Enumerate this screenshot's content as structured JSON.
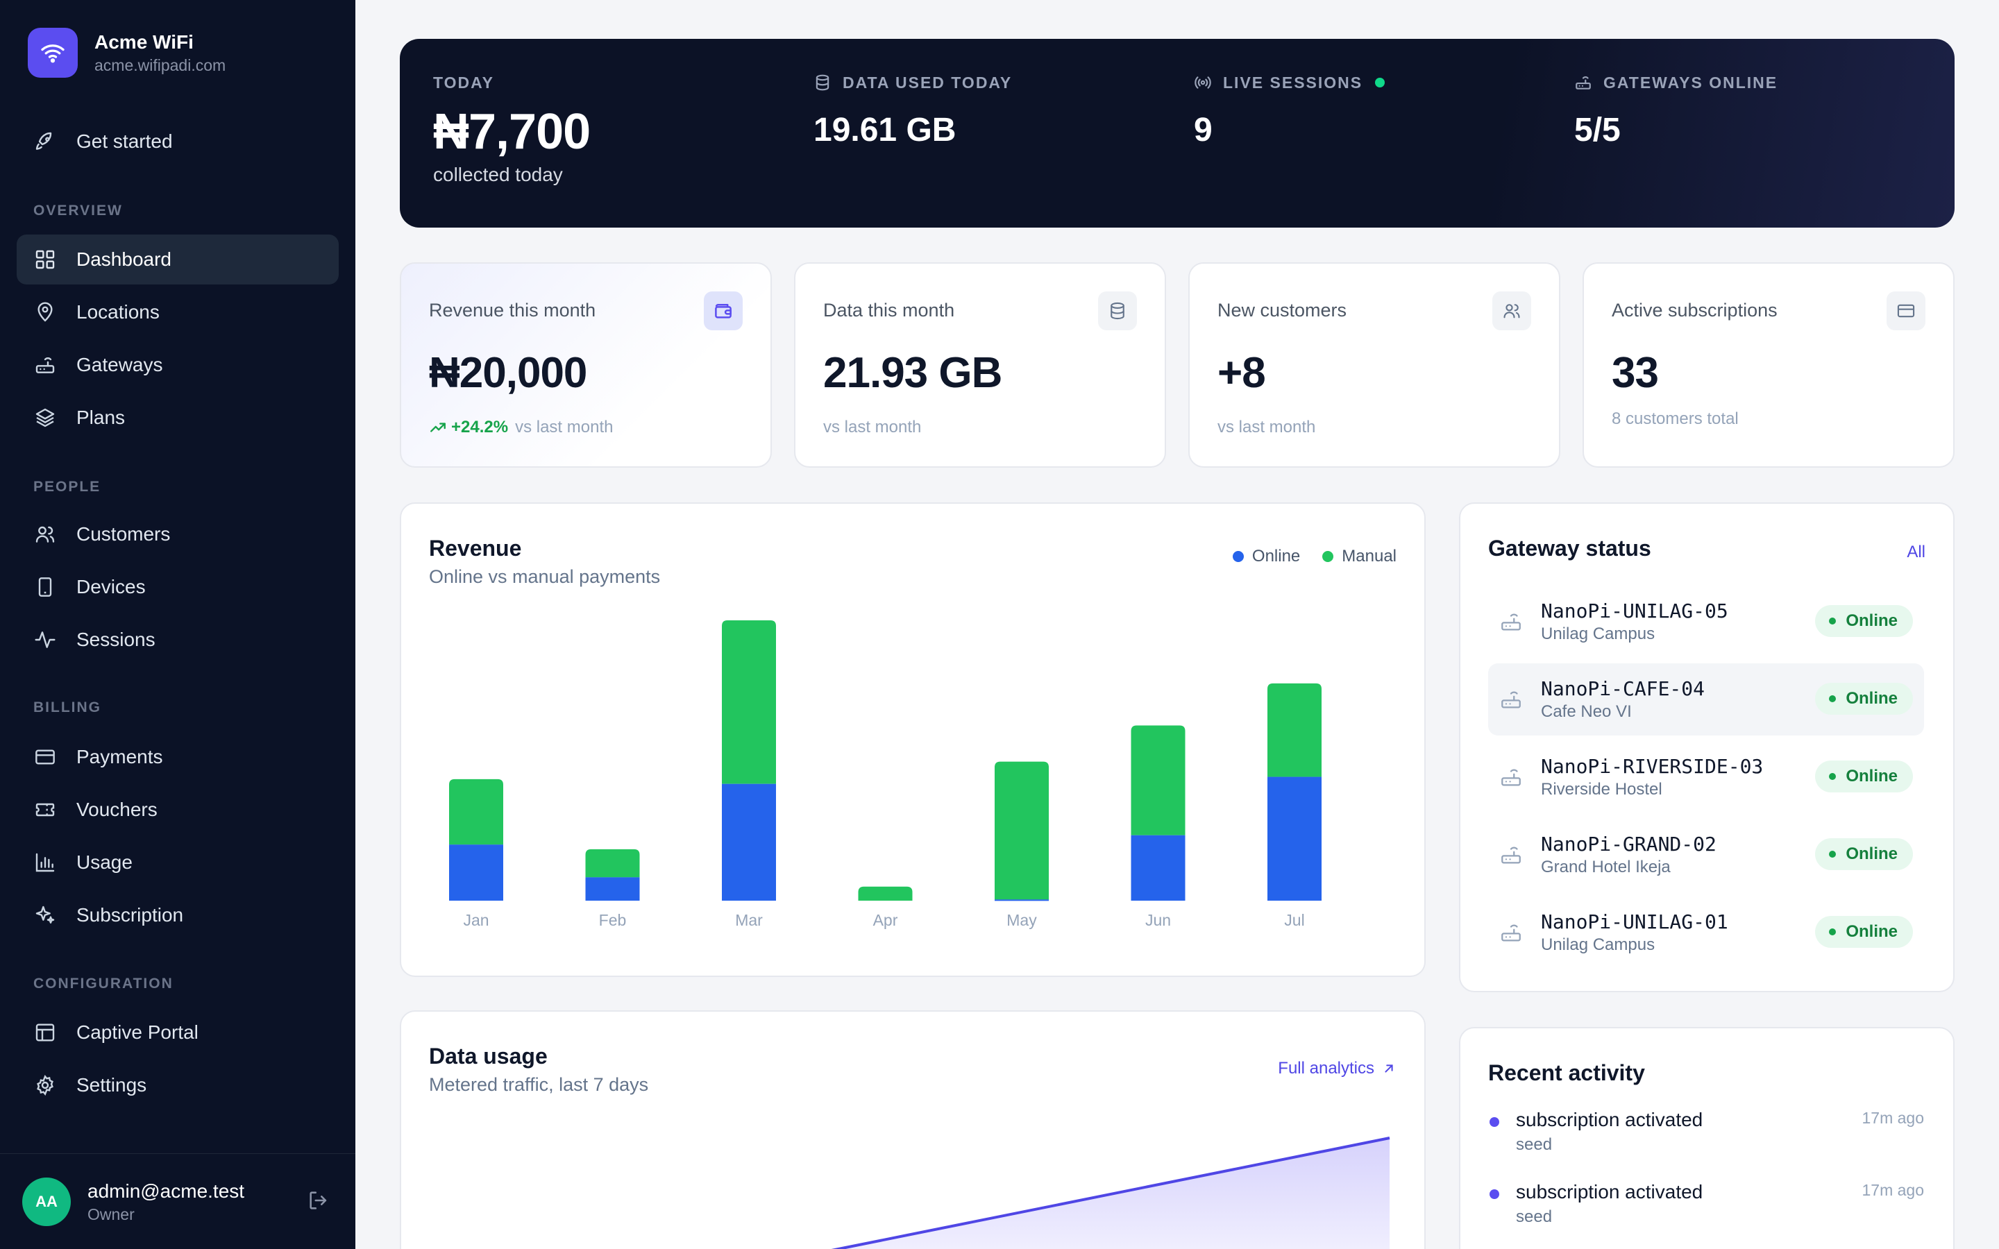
{
  "brand": {
    "name": "Acme WiFi",
    "domain": "acme.wifipadi.com"
  },
  "nav": {
    "get_started": "Get started",
    "sections": {
      "overview": "OVERVIEW",
      "people": "PEOPLE",
      "billing": "BILLING",
      "configuration": "CONFIGURATION"
    },
    "items": {
      "dashboard": "Dashboard",
      "locations": "Locations",
      "gateways": "Gateways",
      "plans": "Plans",
      "customers": "Customers",
      "devices": "Devices",
      "sessions": "Sessions",
      "payments": "Payments",
      "vouchers": "Vouchers",
      "usage": "Usage",
      "subscription": "Subscription",
      "captive_portal": "Captive Portal",
      "settings": "Settings"
    },
    "active": "dashboard"
  },
  "user": {
    "initials": "AA",
    "email": "admin@acme.test",
    "role": "Owner"
  },
  "hero": {
    "today_label": "TODAY",
    "today_value": "₦7,700",
    "today_sub": "collected today",
    "data_label": "DATA USED TODAY",
    "data_value": "19.61 GB",
    "sessions_label": "LIVE SESSIONS",
    "sessions_value": "9",
    "gateways_label": "GATEWAYS ONLINE",
    "gateways_value": "5/5"
  },
  "stats": [
    {
      "label": "Revenue this month",
      "value": "₦20,000",
      "trend": "+24.2%",
      "foot": "vs last month",
      "icon": "wallet-icon"
    },
    {
      "label": "Data this month",
      "value": "21.93 GB",
      "foot": "vs last month",
      "icon": "database-icon"
    },
    {
      "label": "New customers",
      "value": "+8",
      "foot": "vs last month",
      "icon": "users-icon"
    },
    {
      "label": "Active subscriptions",
      "value": "33",
      "foot": "8 customers total",
      "icon": "card-icon"
    }
  ],
  "revenue_panel": {
    "title": "Revenue",
    "subtitle": "Online vs manual payments",
    "legend_online": "Online",
    "legend_manual": "Manual"
  },
  "chart_data": {
    "type": "bar",
    "stacked": true,
    "categories": [
      "Jan",
      "Feb",
      "Mar",
      "Apr",
      "May",
      "Jun",
      "Jul"
    ],
    "series": [
      {
        "name": "Online",
        "color": "#2563eb",
        "values": [
          2400,
          1000,
          5000,
          0,
          50,
          2800,
          5300
        ]
      },
      {
        "name": "Manual",
        "color": "#22c55e",
        "values": [
          2800,
          1200,
          7000,
          600,
          5900,
          4700,
          4000
        ]
      }
    ],
    "grid": false
  },
  "gateway_panel": {
    "title": "Gateway status",
    "link": "All",
    "items": [
      {
        "name": "NanoPi-UNILAG-05",
        "location": "Unilag Campus",
        "status": "Online"
      },
      {
        "name": "NanoPi-CAFE-04",
        "location": "Cafe Neo VI",
        "status": "Online"
      },
      {
        "name": "NanoPi-RIVERSIDE-03",
        "location": "Riverside Hostel",
        "status": "Online"
      },
      {
        "name": "NanoPi-GRAND-02",
        "location": "Grand Hotel Ikeja",
        "status": "Online"
      },
      {
        "name": "NanoPi-UNILAG-01",
        "location": "Unilag Campus",
        "status": "Online"
      }
    ]
  },
  "usage_panel": {
    "title": "Data usage",
    "subtitle": "Metered traffic, last 7 days",
    "link": "Full analytics"
  },
  "activity_panel": {
    "title": "Recent activity",
    "items": [
      {
        "title": "subscription activated",
        "sub": "seed",
        "time": "17m ago"
      },
      {
        "title": "subscription activated",
        "sub": "seed",
        "time": "17m ago"
      }
    ]
  },
  "colors": {
    "accent": "#5b4df0",
    "online": "#2563eb",
    "manual": "#22c55e",
    "success": "#16a34a"
  }
}
